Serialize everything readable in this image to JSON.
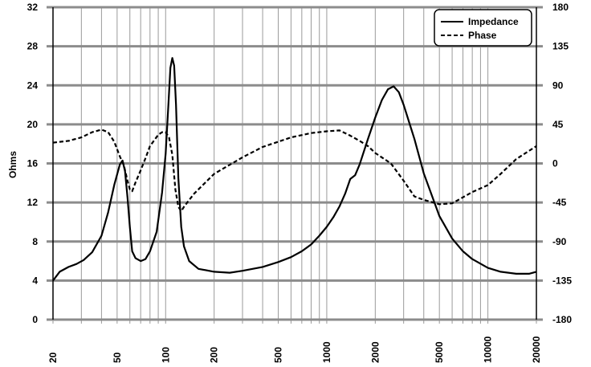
{
  "chart_data": {
    "type": "line",
    "ylabel": "Ohms",
    "x_scale": "log",
    "xlim": [
      20,
      20000
    ],
    "ylim": [
      0,
      32
    ],
    "y2lim": [
      -180,
      180
    ],
    "x_ticks": [
      20,
      50,
      100,
      200,
      500,
      1000,
      2000,
      5000,
      10000,
      20000
    ],
    "y_ticks": [
      0,
      4,
      8,
      12,
      16,
      20,
      24,
      28,
      32
    ],
    "y2_ticks": [
      -180,
      -135,
      -90,
      -45,
      0,
      45,
      90,
      135,
      180
    ],
    "grid": true,
    "legend_position": "top-right",
    "series": [
      {
        "name": "Impedance",
        "axis": "left",
        "style": "solid",
        "color": "#000000",
        "points": [
          [
            20,
            4.0
          ],
          [
            22,
            4.9
          ],
          [
            25,
            5.4
          ],
          [
            28,
            5.7
          ],
          [
            31,
            6.1
          ],
          [
            35,
            6.9
          ],
          [
            40,
            8.6
          ],
          [
            44,
            11.0
          ],
          [
            48,
            13.8
          ],
          [
            52,
            15.9
          ],
          [
            54,
            16.3
          ],
          [
            56,
            15.2
          ],
          [
            58,
            12.5
          ],
          [
            60,
            9.5
          ],
          [
            62,
            7.0
          ],
          [
            65,
            6.3
          ],
          [
            70,
            6.0
          ],
          [
            75,
            6.2
          ],
          [
            80,
            7.0
          ],
          [
            88,
            9.0
          ],
          [
            95,
            13.0
          ],
          [
            100,
            17.0
          ],
          [
            104,
            22.0
          ],
          [
            107,
            25.8
          ],
          [
            110,
            26.8
          ],
          [
            113,
            26.0
          ],
          [
            116,
            22.0
          ],
          [
            120,
            14.5
          ],
          [
            125,
            9.5
          ],
          [
            130,
            7.5
          ],
          [
            140,
            6.0
          ],
          [
            160,
            5.2
          ],
          [
            200,
            4.9
          ],
          [
            250,
            4.8
          ],
          [
            300,
            5.0
          ],
          [
            400,
            5.4
          ],
          [
            500,
            5.9
          ],
          [
            600,
            6.4
          ],
          [
            700,
            7.0
          ],
          [
            800,
            7.7
          ],
          [
            900,
            8.6
          ],
          [
            1000,
            9.5
          ],
          [
            1100,
            10.5
          ],
          [
            1200,
            11.6
          ],
          [
            1300,
            12.9
          ],
          [
            1400,
            14.4
          ],
          [
            1500,
            14.8
          ],
          [
            1600,
            15.9
          ],
          [
            1800,
            18.5
          ],
          [
            2000,
            20.7
          ],
          [
            2200,
            22.5
          ],
          [
            2400,
            23.6
          ],
          [
            2600,
            23.9
          ],
          [
            2800,
            23.3
          ],
          [
            3000,
            22.0
          ],
          [
            3500,
            18.5
          ],
          [
            4000,
            15.0
          ],
          [
            5000,
            10.6
          ],
          [
            6000,
            8.3
          ],
          [
            7000,
            7.0
          ],
          [
            8000,
            6.2
          ],
          [
            10000,
            5.3
          ],
          [
            12000,
            4.9
          ],
          [
            15000,
            4.7
          ],
          [
            18000,
            4.7
          ],
          [
            20000,
            4.9
          ]
        ]
      },
      {
        "name": "Phase",
        "axis": "right",
        "style": "dashed",
        "color": "#000000",
        "points": [
          [
            20,
            24
          ],
          [
            25,
            26
          ],
          [
            30,
            30
          ],
          [
            35,
            36
          ],
          [
            40,
            39
          ],
          [
            44,
            36
          ],
          [
            48,
            25
          ],
          [
            52,
            8
          ],
          [
            55,
            -2
          ],
          [
            58,
            -20
          ],
          [
            60,
            -30
          ],
          [
            62,
            -32
          ],
          [
            65,
            -22
          ],
          [
            70,
            -8
          ],
          [
            75,
            6
          ],
          [
            80,
            20
          ],
          [
            90,
            33
          ],
          [
            95,
            36
          ],
          [
            100,
            36
          ],
          [
            105,
            30
          ],
          [
            110,
            10
          ],
          [
            115,
            -30
          ],
          [
            120,
            -50
          ],
          [
            125,
            -55
          ],
          [
            130,
            -50
          ],
          [
            150,
            -35
          ],
          [
            200,
            -12
          ],
          [
            300,
            7
          ],
          [
            400,
            19
          ],
          [
            500,
            25
          ],
          [
            600,
            30
          ],
          [
            800,
            35
          ],
          [
            1000,
            37
          ],
          [
            1200,
            38
          ],
          [
            1400,
            32
          ],
          [
            1600,
            26
          ],
          [
            1800,
            20
          ],
          [
            2000,
            12
          ],
          [
            2500,
            0
          ],
          [
            3000,
            -20
          ],
          [
            3500,
            -38
          ],
          [
            4000,
            -42
          ],
          [
            5000,
            -47
          ],
          [
            6000,
            -46
          ],
          [
            8000,
            -33
          ],
          [
            10000,
            -25
          ],
          [
            12000,
            -12
          ],
          [
            15000,
            5
          ],
          [
            20000,
            20
          ]
        ]
      }
    ]
  }
}
